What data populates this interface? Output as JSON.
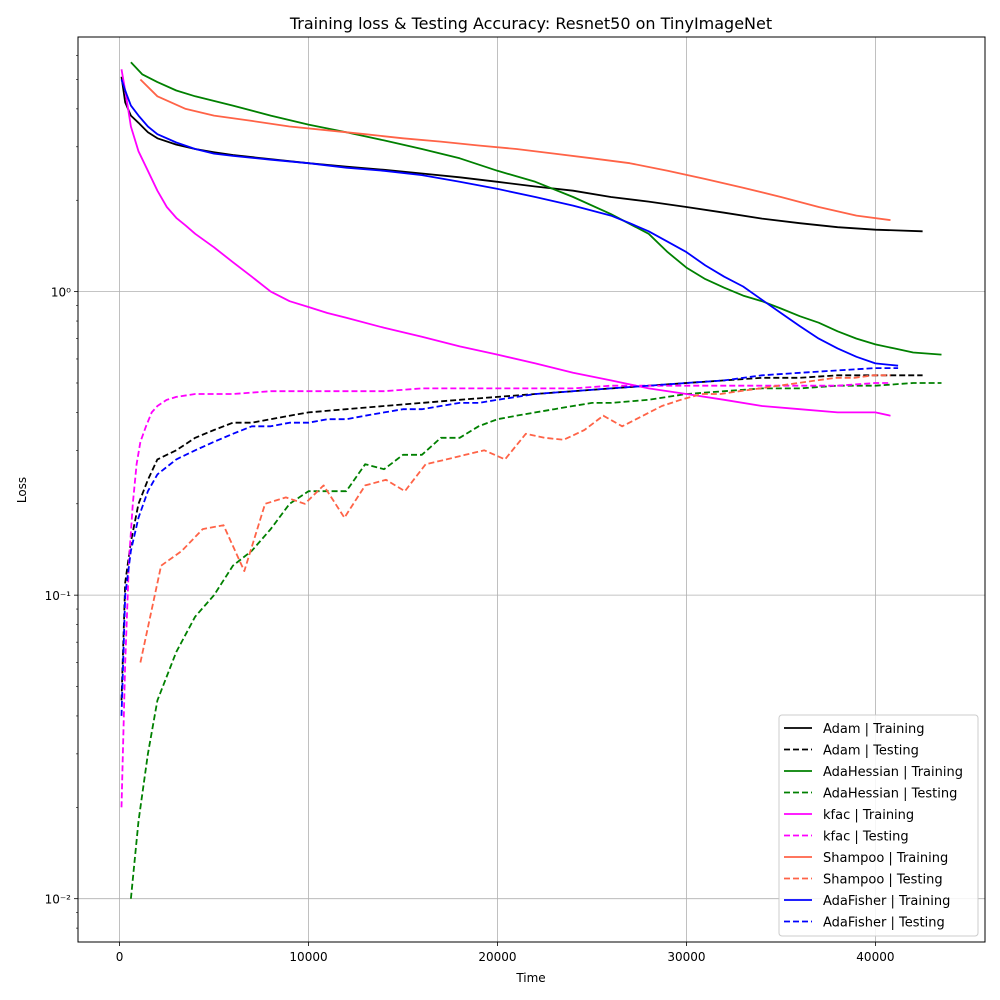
{
  "chart_data": {
    "type": "line",
    "title": "Training loss & Testing Accuracy: Resnet50 on TinyImageNet",
    "xlabel": "Time",
    "ylabel": "Loss",
    "yscale": "log",
    "xlim": [
      -2200,
      45800
    ],
    "ylim": [
      0.0072,
      6.9
    ],
    "xticks": [
      0,
      10000,
      20000,
      30000,
      40000
    ],
    "xtick_labels": [
      "0",
      "10000",
      "20000",
      "30000",
      "40000"
    ],
    "yticks": [
      0.01,
      0.1,
      1
    ],
    "ytick_labels": [
      "10⁻²",
      "10⁻¹",
      "10⁰"
    ],
    "grid": true,
    "legend_position": "bottom-right",
    "series": [
      {
        "name": "Adam | Training",
        "color": "#000000",
        "dash": "solid",
        "x": [
          100,
          300,
          600,
          1000,
          1500,
          2000,
          3000,
          4000,
          5000,
          6000,
          8000,
          10000,
          12000,
          14000,
          16000,
          18000,
          20000,
          22000,
          24000,
          26000,
          28000,
          30000,
          32000,
          34000,
          36000,
          38000,
          40000,
          42500
        ],
        "y": [
          5.1,
          4.2,
          3.8,
          3.6,
          3.35,
          3.2,
          3.05,
          2.95,
          2.88,
          2.82,
          2.73,
          2.65,
          2.58,
          2.52,
          2.45,
          2.38,
          2.3,
          2.22,
          2.15,
          2.05,
          1.98,
          1.9,
          1.82,
          1.74,
          1.68,
          1.63,
          1.6,
          1.58
        ]
      },
      {
        "name": "Adam | Testing",
        "color": "#000000",
        "dash": "dashed",
        "x": [
          100,
          300,
          600,
          1000,
          1500,
          2000,
          3000,
          4000,
          5000,
          6000,
          7000,
          8000,
          9000,
          10000,
          12000,
          14000,
          16000,
          18000,
          20000,
          22000,
          24000,
          26000,
          28000,
          30000,
          32000,
          34000,
          36000,
          38000,
          40000,
          42500
        ],
        "y": [
          0.045,
          0.11,
          0.15,
          0.2,
          0.24,
          0.28,
          0.3,
          0.33,
          0.35,
          0.37,
          0.37,
          0.38,
          0.39,
          0.4,
          0.41,
          0.42,
          0.43,
          0.44,
          0.45,
          0.46,
          0.47,
          0.48,
          0.49,
          0.5,
          0.51,
          0.52,
          0.52,
          0.53,
          0.53,
          0.53
        ]
      },
      {
        "name": "AdaHessian | Training",
        "color": "#008000",
        "dash": "solid",
        "x": [
          600,
          1200,
          2000,
          3000,
          4000,
          6000,
          8000,
          10000,
          12000,
          14000,
          16000,
          18000,
          20000,
          22000,
          24000,
          26000,
          28000,
          29000,
          30000,
          31000,
          32000,
          33000,
          34000,
          35000,
          36000,
          37000,
          38000,
          39000,
          40000,
          41000,
          42000,
          43500
        ],
        "y": [
          5.7,
          5.2,
          4.9,
          4.6,
          4.4,
          4.1,
          3.8,
          3.55,
          3.35,
          3.15,
          2.95,
          2.75,
          2.5,
          2.3,
          2.05,
          1.8,
          1.55,
          1.35,
          1.2,
          1.1,
          1.03,
          0.97,
          0.93,
          0.88,
          0.83,
          0.79,
          0.74,
          0.7,
          0.67,
          0.65,
          0.63,
          0.62
        ]
      },
      {
        "name": "AdaHessian | Testing",
        "color": "#008000",
        "dash": "dashed",
        "x": [
          600,
          1000,
          1500,
          2000,
          3000,
          4000,
          5000,
          6000,
          7000,
          8000,
          9000,
          10000,
          12000,
          13000,
          14000,
          15000,
          16000,
          17000,
          18000,
          19000,
          20000,
          21000,
          22000,
          23000,
          24000,
          25000,
          26000,
          28000,
          30000,
          32000,
          34000,
          36000,
          38000,
          40000,
          42000,
          43500
        ],
        "y": [
          0.01,
          0.018,
          0.03,
          0.045,
          0.065,
          0.085,
          0.1,
          0.125,
          0.14,
          0.165,
          0.2,
          0.22,
          0.22,
          0.27,
          0.26,
          0.29,
          0.29,
          0.33,
          0.33,
          0.36,
          0.38,
          0.39,
          0.4,
          0.41,
          0.42,
          0.43,
          0.43,
          0.44,
          0.46,
          0.47,
          0.48,
          0.48,
          0.49,
          0.49,
          0.5,
          0.5
        ]
      },
      {
        "name": "kfac | Training",
        "color": "#ff00ff",
        "dash": "solid",
        "x": [
          100,
          300,
          600,
          1000,
          1500,
          2000,
          2500,
          3000,
          3500,
          4000,
          5000,
          6000,
          7000,
          8000,
          9000,
          10000,
          11000,
          12000,
          14000,
          16000,
          18000,
          20000,
          22000,
          24000,
          26000,
          28000,
          30000,
          32000,
          34000,
          36000,
          38000,
          40000,
          40800
        ],
        "y": [
          5.4,
          4.6,
          3.5,
          2.9,
          2.5,
          2.15,
          1.9,
          1.75,
          1.65,
          1.55,
          1.4,
          1.25,
          1.12,
          1.0,
          0.93,
          0.89,
          0.85,
          0.82,
          0.76,
          0.71,
          0.66,
          0.62,
          0.58,
          0.54,
          0.51,
          0.48,
          0.46,
          0.44,
          0.42,
          0.41,
          0.4,
          0.4,
          0.39
        ]
      },
      {
        "name": "kfac | Testing",
        "color": "#ff00ff",
        "dash": "dashed",
        "x": [
          100,
          300,
          500,
          700,
          900,
          1100,
          1400,
          1700,
          2000,
          2500,
          3000,
          4000,
          5000,
          6000,
          8000,
          10000,
          12000,
          14000,
          16000,
          18000,
          20000,
          22000,
          24000,
          26000,
          28000,
          30000,
          32000,
          34000,
          36000,
          38000,
          40000,
          40800
        ],
        "y": [
          0.02,
          0.06,
          0.13,
          0.2,
          0.27,
          0.32,
          0.36,
          0.4,
          0.42,
          0.44,
          0.45,
          0.46,
          0.46,
          0.46,
          0.47,
          0.47,
          0.47,
          0.47,
          0.48,
          0.48,
          0.48,
          0.48,
          0.48,
          0.49,
          0.49,
          0.49,
          0.49,
          0.49,
          0.49,
          0.49,
          0.5,
          0.5
        ]
      },
      {
        "name": "Shampoo | Training",
        "color": "#ff6347",
        "dash": "solid",
        "x": [
          1100,
          2000,
          3500,
          5000,
          7000,
          9000,
          11000,
          13000,
          15000,
          17000,
          19000,
          21000,
          23000,
          25000,
          27000,
          29000,
          31000,
          33000,
          35000,
          37000,
          39000,
          40800
        ],
        "y": [
          5.0,
          4.4,
          4.0,
          3.8,
          3.65,
          3.5,
          3.4,
          3.3,
          3.2,
          3.12,
          3.03,
          2.95,
          2.85,
          2.75,
          2.65,
          2.5,
          2.35,
          2.2,
          2.05,
          1.9,
          1.78,
          1.72
        ]
      },
      {
        "name": "Shampoo | Testing",
        "color": "#ff6347",
        "dash": "dashed",
        "x": [
          1100,
          2200,
          3300,
          4400,
          5500,
          6600,
          7700,
          8800,
          9800,
          10800,
          11900,
          13000,
          14100,
          15100,
          16200,
          17300,
          18300,
          19300,
          20400,
          21500,
          22500,
          23500,
          24600,
          25600,
          26600,
          27700,
          28700,
          29700,
          30800,
          31800,
          32800,
          33900,
          34900,
          35900,
          36900,
          37900,
          38900,
          39900,
          40800
        ],
        "y": [
          0.06,
          0.125,
          0.14,
          0.165,
          0.17,
          0.12,
          0.2,
          0.21,
          0.2,
          0.23,
          0.18,
          0.23,
          0.24,
          0.22,
          0.27,
          0.28,
          0.29,
          0.3,
          0.28,
          0.34,
          0.33,
          0.325,
          0.35,
          0.39,
          0.36,
          0.39,
          0.42,
          0.44,
          0.46,
          0.46,
          0.47,
          0.48,
          0.49,
          0.5,
          0.51,
          0.52,
          0.52,
          0.53,
          0.53
        ]
      },
      {
        "name": "AdaFisher | Training",
        "color": "#0000ff",
        "dash": "solid",
        "x": [
          100,
          300,
          600,
          1000,
          1500,
          2000,
          3000,
          4000,
          5000,
          6000,
          8000,
          10000,
          12000,
          14000,
          16000,
          18000,
          20000,
          22000,
          24000,
          26000,
          27000,
          28000,
          29000,
          30000,
          31000,
          32000,
          33000,
          34000,
          35000,
          36000,
          37000,
          38000,
          39000,
          40000,
          41200
        ],
        "y": [
          5.0,
          4.6,
          4.1,
          3.8,
          3.5,
          3.3,
          3.1,
          2.95,
          2.85,
          2.8,
          2.72,
          2.65,
          2.56,
          2.5,
          2.42,
          2.3,
          2.18,
          2.05,
          1.92,
          1.78,
          1.68,
          1.58,
          1.46,
          1.35,
          1.22,
          1.12,
          1.04,
          0.94,
          0.85,
          0.77,
          0.7,
          0.65,
          0.61,
          0.58,
          0.57
        ]
      },
      {
        "name": "AdaFisher | Testing",
        "color": "#0000ff",
        "dash": "dashed",
        "x": [
          100,
          300,
          600,
          1000,
          1500,
          2000,
          3000,
          4000,
          5000,
          6000,
          7000,
          8000,
          9000,
          10000,
          11000,
          12000,
          13000,
          14000,
          15000,
          16000,
          17000,
          18000,
          19000,
          20000,
          22000,
          24000,
          26000,
          28000,
          30000,
          32000,
          34000,
          36000,
          38000,
          40000,
          41200
        ],
        "y": [
          0.04,
          0.1,
          0.14,
          0.18,
          0.22,
          0.25,
          0.28,
          0.3,
          0.32,
          0.34,
          0.36,
          0.36,
          0.37,
          0.37,
          0.38,
          0.38,
          0.39,
          0.4,
          0.41,
          0.41,
          0.42,
          0.43,
          0.43,
          0.44,
          0.46,
          0.47,
          0.48,
          0.49,
          0.5,
          0.51,
          0.53,
          0.54,
          0.55,
          0.56,
          0.56
        ]
      }
    ]
  }
}
